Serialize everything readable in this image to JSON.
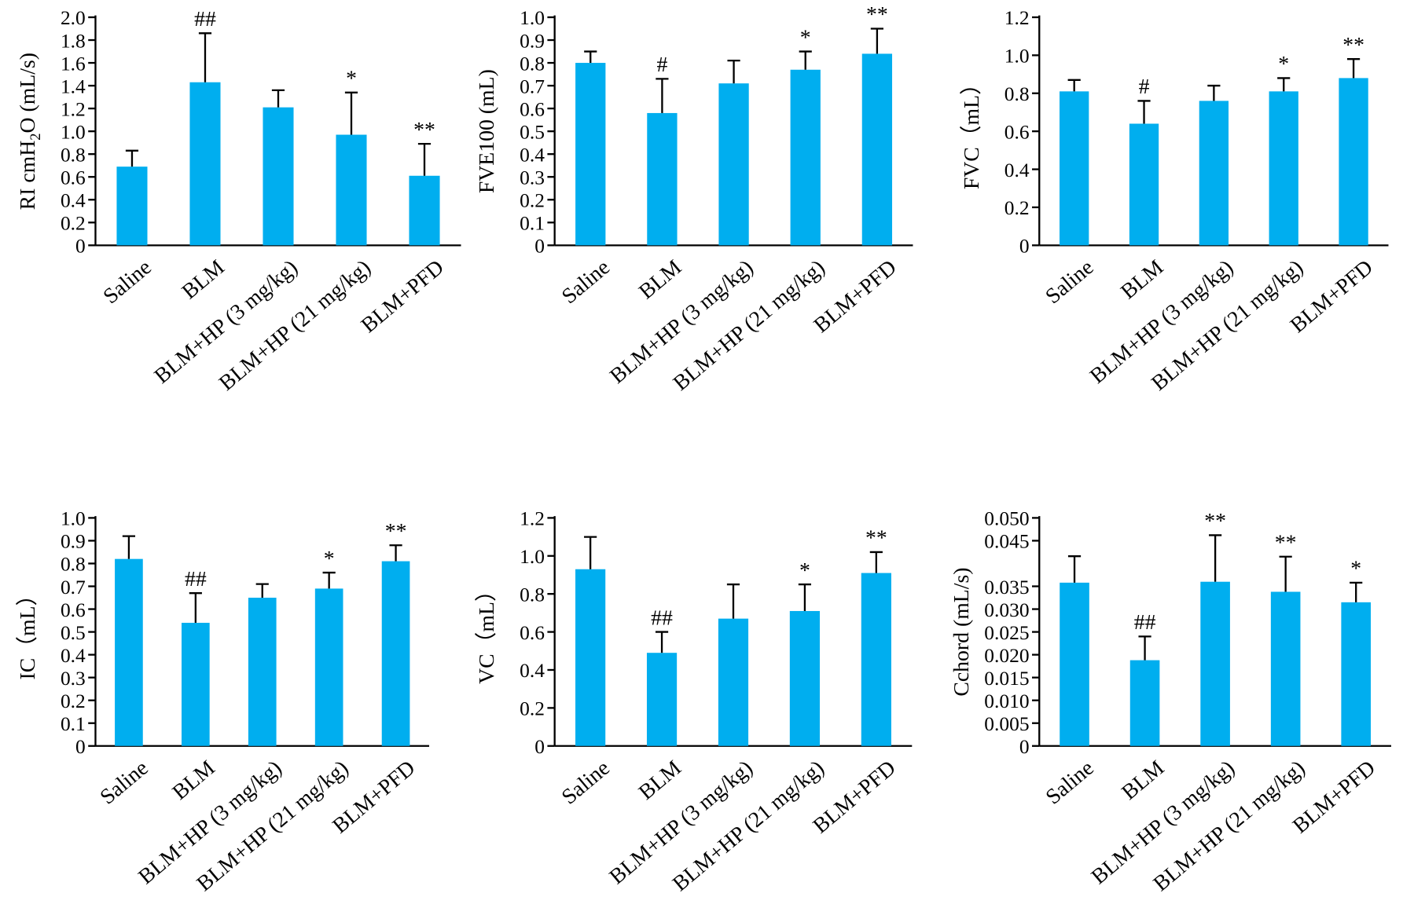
{
  "colors": {
    "bar": "#00AEEF",
    "axis": "#000000",
    "text": "#000000"
  },
  "categories": [
    "Saline",
    "BLM",
    "BLM+HP (3 mg/kg)",
    "BLM+HP (21 mg/kg)",
    "BLM+PFD"
  ],
  "chart_data": [
    {
      "type": "bar",
      "ylabel_parts": [
        "RI cmH",
        "2",
        "O (mL/s)"
      ],
      "ylim": [
        0,
        2.0
      ],
      "yticks": [
        "0",
        "0.2",
        "0.4",
        "0.6",
        "0.8",
        "1.0",
        "1.2",
        "1.4",
        "1.6",
        "1.8",
        "2.0"
      ],
      "values": [
        0.69,
        1.43,
        1.21,
        0.97,
        0.61
      ],
      "errors": [
        0.14,
        0.43,
        0.15,
        0.37,
        0.28
      ],
      "annotations": [
        "",
        "##",
        "",
        "*",
        "**"
      ]
    },
    {
      "type": "bar",
      "ylabel_parts": [
        "FVE100 (mL)"
      ],
      "ylim": [
        0,
        1.0
      ],
      "yticks": [
        "0",
        "0.1",
        "0.2",
        "0.3",
        "0.4",
        "0.5",
        "0.6",
        "0.7",
        "0.8",
        "0.9",
        "1.0"
      ],
      "values": [
        0.8,
        0.58,
        0.71,
        0.77,
        0.84
      ],
      "errors": [
        0.05,
        0.15,
        0.1,
        0.08,
        0.11
      ],
      "annotations": [
        "",
        "#",
        "",
        "*",
        "**"
      ]
    },
    {
      "type": "bar",
      "ylabel_parts": [
        "FVC（mL）"
      ],
      "ylim": [
        0,
        1.2
      ],
      "yticks": [
        "0",
        "0.2",
        "0.4",
        "0.6",
        "0.8",
        "1.0",
        "1.2"
      ],
      "values": [
        0.81,
        0.64,
        0.76,
        0.81,
        0.88
      ],
      "errors": [
        0.06,
        0.12,
        0.08,
        0.07,
        0.1
      ],
      "annotations": [
        "",
        "#",
        "",
        "*",
        "**"
      ]
    },
    {
      "type": "bar",
      "ylabel_parts": [
        "IC（mL）"
      ],
      "ylim": [
        0,
        1.0
      ],
      "yticks": [
        "0",
        "0.1",
        "0.2",
        "0.3",
        "0.4",
        "0.5",
        "0.6",
        "0.7",
        "0.8",
        "0.9",
        "1.0"
      ],
      "values": [
        0.82,
        0.54,
        0.65,
        0.69,
        0.81
      ],
      "errors": [
        0.1,
        0.13,
        0.06,
        0.07,
        0.07
      ],
      "annotations": [
        "",
        "##",
        "",
        "*",
        "**"
      ]
    },
    {
      "type": "bar",
      "ylabel_parts": [
        "VC（mL）"
      ],
      "ylim": [
        0,
        1.2
      ],
      "yticks": [
        "0",
        "0.2",
        "0.4",
        "0.6",
        "0.8",
        "1.0",
        "1.2"
      ],
      "values": [
        0.93,
        0.49,
        0.67,
        0.71,
        0.91
      ],
      "errors": [
        0.17,
        0.11,
        0.18,
        0.14,
        0.11
      ],
      "annotations": [
        "",
        "##",
        "",
        "*",
        "**"
      ]
    },
    {
      "type": "bar",
      "ylabel_parts": [
        "Cchord (mL/s)"
      ],
      "ylim": [
        0,
        0.05
      ],
      "yticks": [
        "0",
        "0.005",
        "0.010",
        "0.015",
        "0.020",
        "0.025",
        "0.030",
        "0.035",
        "0.045",
        "0.050"
      ],
      "ytick_values": [
        0,
        0.005,
        0.01,
        0.015,
        0.02,
        0.025,
        0.03,
        0.035,
        0.045,
        0.05
      ],
      "values": [
        0.0358,
        0.0188,
        0.036,
        0.0338,
        0.0315
      ],
      "errors": [
        0.0058,
        0.0052,
        0.0102,
        0.0077,
        0.0043
      ],
      "annotations": [
        "",
        "##",
        "**",
        "**",
        "*"
      ]
    }
  ]
}
